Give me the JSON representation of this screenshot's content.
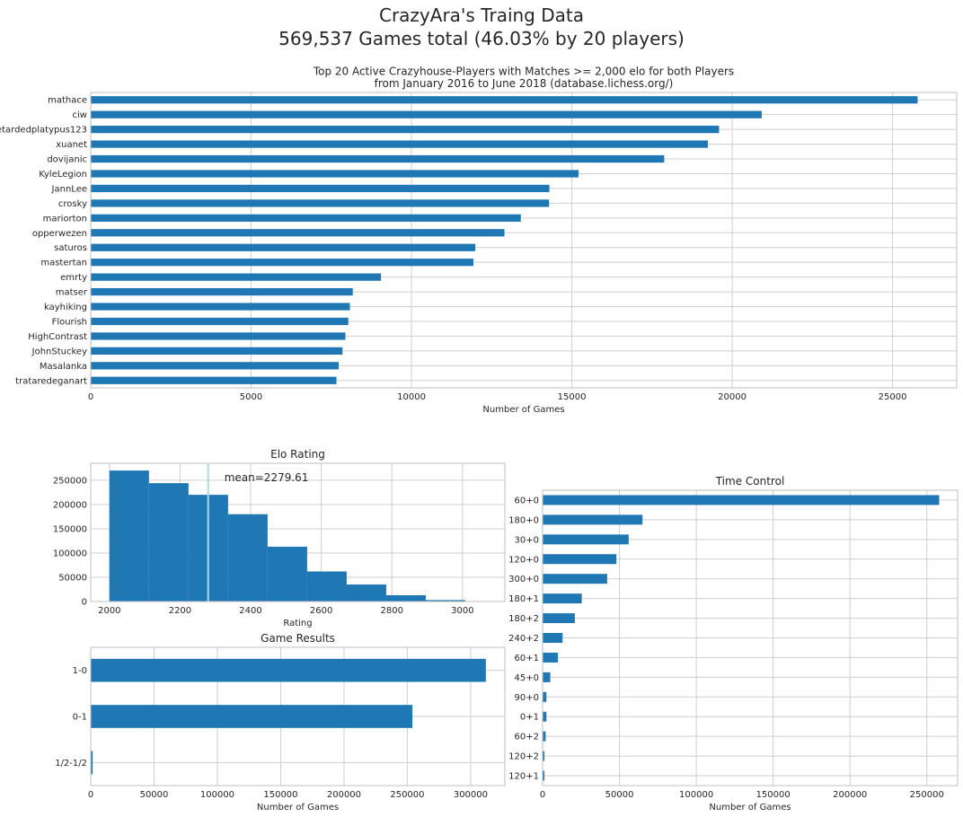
{
  "figure": {
    "title_line1": "CrazyAra's Traing Data",
    "title_line2": "569,537 Games total (46.03% by 20 players)",
    "bar_color": "#1f77b4",
    "mean_line_color": "#add8e6",
    "grid_color": "#cfcfcf",
    "spine_color": "#bfbfbf"
  },
  "chart_data": [
    {
      "id": "players",
      "type": "bar",
      "orientation": "horizontal",
      "title": "Top 20 Active Crazyhouse-Players with Matches >= 2,000 elo for both Players\nfrom January 2016 to June 2018 (database.lichess.org/)",
      "xlabel": "Number of Games",
      "ylabel": "",
      "xlim": [
        0,
        27000
      ],
      "xticks": [
        0,
        5000,
        10000,
        15000,
        20000,
        25000
      ],
      "grid": true,
      "legend": "none",
      "categories": [
        "mathace",
        "ciw",
        "retardedplatypus123",
        "xuanet",
        "dovijanic",
        "KyleLegion",
        "JannLee",
        "crosky",
        "mariorton",
        "opperwezen",
        "saturos",
        "mastertan",
        "emrty",
        "matser",
        "kayhiking",
        "Flourish",
        "HighContrast",
        "JohnStuckey",
        "Masalanka",
        "trataredeganart"
      ],
      "values": [
        25780,
        20920,
        19590,
        19240,
        17880,
        15210,
        14300,
        14290,
        13410,
        12900,
        11990,
        11930,
        9050,
        8170,
        8080,
        8030,
        7940,
        7850,
        7730,
        7660
      ]
    },
    {
      "id": "elo",
      "type": "histogram",
      "title": "Elo Rating",
      "xlabel": "Rating",
      "ylabel": "",
      "xlim": [
        1947,
        3120
      ],
      "ylim": [
        0,
        285000
      ],
      "xticks": [
        2000,
        2200,
        2400,
        2600,
        2800,
        3000
      ],
      "yticks": [
        0,
        50000,
        100000,
        150000,
        200000,
        250000
      ],
      "grid": true,
      "bin_edges": [
        2000,
        2112,
        2224,
        2336,
        2448,
        2560,
        2672,
        2784,
        2896,
        3008
      ],
      "counts": [
        270000,
        244000,
        220000,
        180000,
        113000,
        62000,
        35000,
        13000,
        3000
      ],
      "mean": 2279.61,
      "mean_label": "mean=2279.61"
    },
    {
      "id": "results",
      "type": "bar",
      "orientation": "horizontal",
      "title": "Game Results",
      "xlabel": "Number of Games",
      "ylabel": "",
      "xlim": [
        0,
        327000
      ],
      "xticks": [
        0,
        50000,
        100000,
        150000,
        200000,
        250000,
        300000
      ],
      "grid": true,
      "categories": [
        "1-0",
        "0-1",
        "1/2-1/2"
      ],
      "values": [
        312000,
        254000,
        1500
      ]
    },
    {
      "id": "time_control",
      "type": "bar",
      "orientation": "horizontal",
      "title": "Time Control",
      "xlabel": "Number of Games",
      "ylabel": "",
      "xlim": [
        0,
        270000
      ],
      "xticks": [
        0,
        50000,
        100000,
        150000,
        200000,
        250000
      ],
      "grid": true,
      "categories": [
        "60+0",
        "180+0",
        "30+0",
        "120+0",
        "300+0",
        "180+1",
        "180+2",
        "240+2",
        "60+1",
        "45+0",
        "90+0",
        "0+1",
        "60+2",
        "120+2",
        "120+1"
      ],
      "values": [
        258000,
        65000,
        56000,
        48000,
        42000,
        25500,
        21000,
        13000,
        10000,
        5000,
        2500,
        2500,
        2000,
        1200,
        1200
      ]
    }
  ]
}
